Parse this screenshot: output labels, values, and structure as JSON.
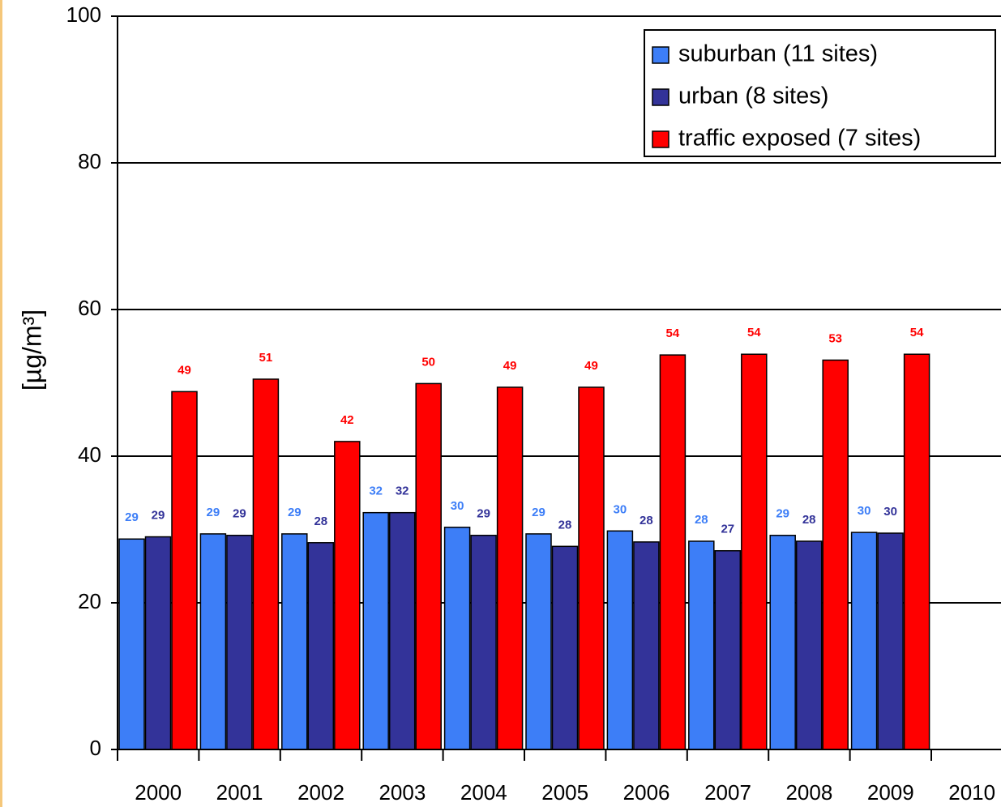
{
  "chart_data": {
    "type": "bar",
    "y_label": "[µg/m³]",
    "categories": [
      "2000",
      "2001",
      "2002",
      "2003",
      "2004",
      "2005",
      "2006",
      "2007",
      "2008",
      "2009",
      "2010"
    ],
    "series": [
      {
        "name": "suburban (11 sites)",
        "color": "#3d7ef7",
        "label_color": "#3d7ef7",
        "values": [
          28.7,
          29.4,
          29.4,
          32.3,
          30.3,
          29.4,
          29.8,
          28.4,
          29.2,
          29.6,
          null
        ],
        "value_labels": [
          "29",
          "29",
          "29",
          "32",
          "30",
          "29",
          "30",
          "28",
          "29",
          "30",
          null
        ]
      },
      {
        "name": "urban (8 sites)",
        "color": "#333399",
        "label_color": "#333399",
        "values": [
          29.0,
          29.2,
          28.2,
          32.3,
          29.2,
          27.7,
          28.3,
          27.1,
          28.4,
          29.5,
          null
        ],
        "value_labels": [
          "29",
          "29",
          "28",
          "32",
          "29",
          "28",
          "28",
          "27",
          "28",
          "30",
          null
        ]
      },
      {
        "name": "traffic exposed (7 sites)",
        "color": "#ff0000",
        "label_color": "#ff0000",
        "values": [
          48.8,
          50.5,
          42.0,
          49.9,
          49.4,
          49.4,
          53.8,
          53.9,
          53.1,
          53.9,
          null
        ],
        "value_labels": [
          "49",
          "51",
          "42",
          "50",
          "49",
          "49",
          "54",
          "54",
          "53",
          "54",
          null
        ]
      }
    ],
    "ylim": [
      0,
      100
    ],
    "yticks": [
      0,
      20,
      40,
      60,
      80,
      100
    ],
    "grid": true,
    "legend": "upper right"
  }
}
